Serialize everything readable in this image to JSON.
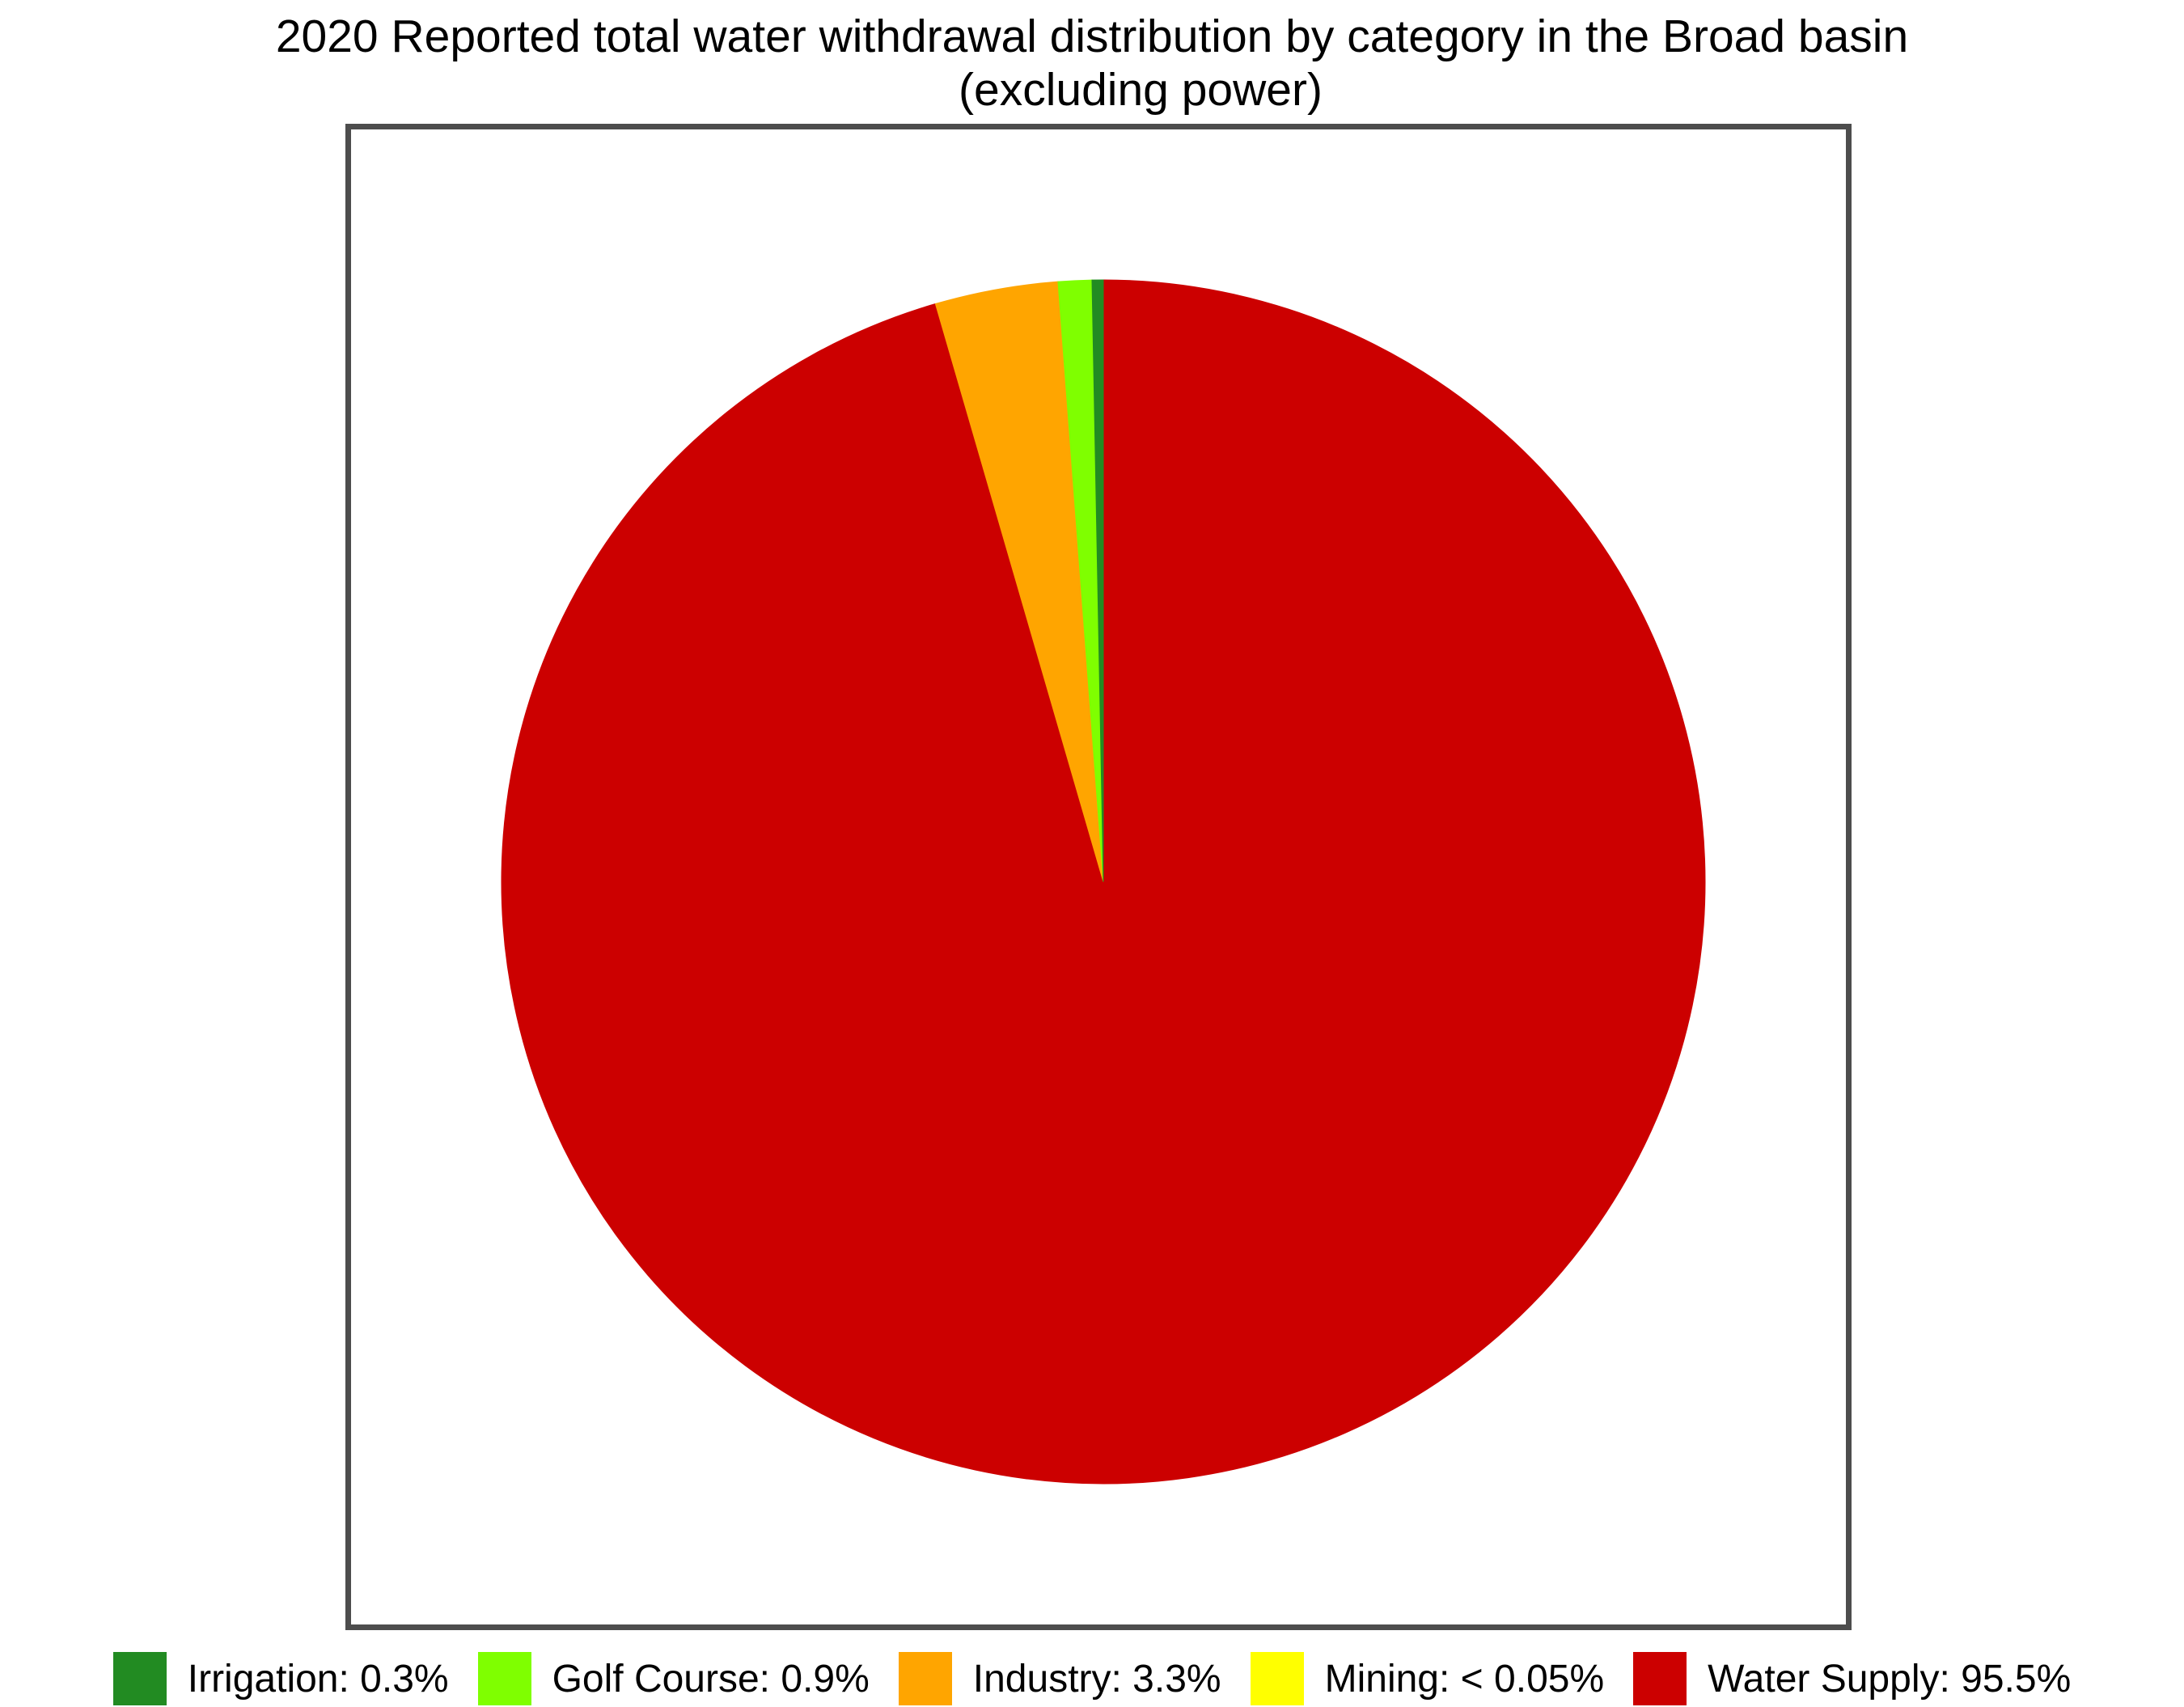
{
  "chart_data": {
    "type": "pie",
    "title": "2020 Reported total water withdrawal distribution by category in the Broad basin",
    "subtitle": "(excluding power)",
    "legend_position": "bottom",
    "start_angle_deg": 0,
    "direction": "clockwise",
    "slices": [
      {
        "name": "Water Supply",
        "value": 95.5,
        "color": "#CC0000",
        "label": "Water Supply: 95.5%"
      },
      {
        "name": "Industry",
        "value": 3.3,
        "color": "#FFA500",
        "label": "Industry: 3.3%"
      },
      {
        "name": "Golf Course",
        "value": 0.9,
        "color": "#7FFF00",
        "label": "Golf Course: 0.9%"
      },
      {
        "name": "Irrigation",
        "value": 0.3,
        "color": "#228B22",
        "label": "Irrigation: 0.3%"
      },
      {
        "name": "Mining",
        "value": 0.0,
        "color": "#FFFF00",
        "label": "Mining: < 0.05%"
      }
    ],
    "legend": [
      {
        "label": "Irrigation: 0.3%",
        "color": "#228B22"
      },
      {
        "label": "Golf Course: 0.9%",
        "color": "#7FFF00"
      },
      {
        "label": "Industry: 3.3%",
        "color": "#FFA500"
      },
      {
        "label": "Mining: < 0.05%",
        "color": "#FFFF00"
      },
      {
        "label": "Water Supply: 95.5%",
        "color": "#CC0000"
      }
    ]
  }
}
